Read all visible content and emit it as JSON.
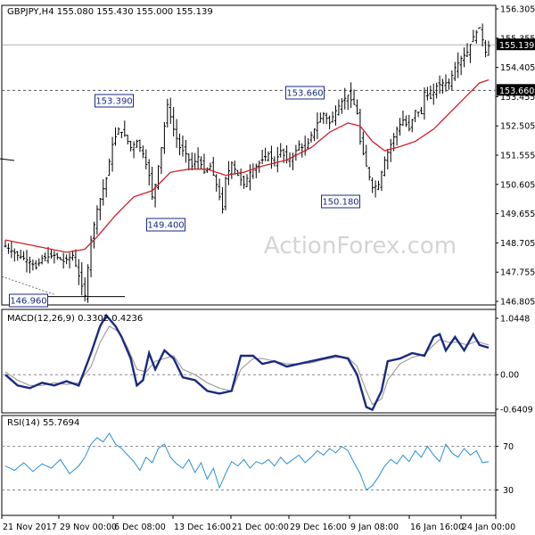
{
  "header": {
    "main": "GBPJPY,H4  155.080 155.430 155.000 155.139",
    "macd": "MACD(12,26,9) 0.3302 0.4236",
    "rsi": "RSI(14) 55.7694"
  },
  "watermark": "ActionForex.com",
  "colors": {
    "bars": "#000000",
    "ma": "#d0202a",
    "macd_line": "#1a2a80",
    "macd_signal": "#a0a0a0",
    "rsi_line": "#2b8fd6",
    "grid": "#c8c8c8",
    "label_box": "#1a2a80"
  },
  "chart_data": [
    {
      "panel": "price",
      "type": "ohlc",
      "symbol": "GBPJPY",
      "timeframe": "H4",
      "last_ohlc": {
        "open": 155.08,
        "high": 155.43,
        "low": 155.0,
        "close": 155.139
      },
      "ylim": [
        146.805,
        156.305
      ],
      "yticks": [
        "156.305",
        "155.355",
        "154.405",
        "153.455",
        "152.505",
        "151.555",
        "150.605",
        "149.655",
        "148.705",
        "147.755",
        "146.805"
      ],
      "xticks": [
        "21 Nov 2017",
        "29 Nov 00:00",
        "6 Dec 08:00",
        "13 Dec 16:00",
        "21 Dec 00:00",
        "29 Dec 16:00",
        "9 Jan 08:00",
        "16 Jan 16:00",
        "24 Jan 00:00"
      ],
      "price_tag": "155.139",
      "level_tag": "153.660",
      "support_line": 146.96,
      "annotations": [
        {
          "text": "153.390",
          "value": 153.39
        },
        {
          "text": "149.400",
          "value": 149.4
        },
        {
          "text": "153.660",
          "value": 153.66
        },
        {
          "text": "150.180",
          "value": 150.18
        },
        {
          "text": "146.960",
          "value": 146.96
        }
      ],
      "close_path": [
        [
          0,
          148.6
        ],
        [
          4,
          148.3
        ],
        [
          8,
          148.1
        ],
        [
          10,
          147.9
        ],
        [
          12,
          148.2
        ],
        [
          16,
          148.3
        ],
        [
          19,
          148.1
        ],
        [
          22,
          148.3
        ],
        [
          25,
          147.3
        ],
        [
          26,
          147.0
        ],
        [
          28,
          148.8
        ],
        [
          30,
          149.8
        ],
        [
          33,
          150.8
        ],
        [
          35,
          151.9
        ],
        [
          37,
          152.4
        ],
        [
          39,
          152.2
        ],
        [
          41,
          151.8
        ],
        [
          43,
          152.0
        ],
        [
          45,
          151.6
        ],
        [
          47,
          150.9
        ],
        [
          48,
          150.2
        ],
        [
          49,
          150.6
        ],
        [
          51,
          151.8
        ],
        [
          52,
          152.5
        ],
        [
          53,
          153.2
        ],
        [
          55,
          152.4
        ],
        [
          57,
          151.8
        ],
        [
          59,
          151.6
        ],
        [
          61,
          151.2
        ],
        [
          63,
          151.5
        ],
        [
          65,
          151.0
        ],
        [
          67,
          151.2
        ],
        [
          69,
          150.6
        ],
        [
          71,
          149.8
        ],
        [
          72,
          150.8
        ],
        [
          74,
          151.3
        ],
        [
          76,
          150.9
        ],
        [
          78,
          150.6
        ],
        [
          80,
          151.0
        ],
        [
          82,
          151.2
        ],
        [
          84,
          151.4
        ],
        [
          86,
          151.6
        ],
        [
          88,
          151.3
        ],
        [
          90,
          151.7
        ],
        [
          92,
          151.4
        ],
        [
          94,
          151.5
        ],
        [
          96,
          151.9
        ],
        [
          98,
          151.7
        ],
        [
          100,
          152.2
        ],
        [
          102,
          152.6
        ],
        [
          104,
          152.9
        ],
        [
          106,
          152.6
        ],
        [
          108,
          153.0
        ],
        [
          110,
          153.3
        ],
        [
          112,
          153.5
        ],
        [
          114,
          153.2
        ],
        [
          115,
          152.9
        ],
        [
          116,
          152.0
        ],
        [
          118,
          151.2
        ],
        [
          120,
          150.5
        ],
        [
          122,
          150.6
        ],
        [
          124,
          151.4
        ],
        [
          126,
          151.9
        ],
        [
          128,
          152.4
        ],
        [
          130,
          152.7
        ],
        [
          132,
          152.4
        ],
        [
          134,
          153.0
        ],
        [
          136,
          152.9
        ],
        [
          137,
          153.6
        ],
        [
          139,
          153.4
        ],
        [
          141,
          153.8
        ],
        [
          143,
          153.9
        ],
        [
          145,
          153.9
        ],
        [
          147,
          154.4
        ],
        [
          149,
          154.7
        ],
        [
          151,
          154.9
        ],
        [
          153,
          155.4
        ],
        [
          155,
          155.7
        ],
        [
          157,
          154.9
        ],
        [
          158,
          155.1
        ]
      ],
      "ma_path": [
        [
          0,
          148.8
        ],
        [
          10,
          148.6
        ],
        [
          20,
          148.4
        ],
        [
          26,
          148.5
        ],
        [
          30,
          148.9
        ],
        [
          36,
          149.6
        ],
        [
          42,
          150.2
        ],
        [
          48,
          150.4
        ],
        [
          54,
          151.0
        ],
        [
          60,
          151.1
        ],
        [
          66,
          151.1
        ],
        [
          72,
          150.9
        ],
        [
          78,
          151.0
        ],
        [
          84,
          151.2
        ],
        [
          92,
          151.4
        ],
        [
          100,
          151.8
        ],
        [
          106,
          152.3
        ],
        [
          112,
          152.6
        ],
        [
          116,
          152.5
        ],
        [
          120,
          152.0
        ],
        [
          124,
          151.7
        ],
        [
          128,
          151.8
        ],
        [
          134,
          152.0
        ],
        [
          140,
          152.4
        ],
        [
          146,
          153.0
        ],
        [
          150,
          153.4
        ],
        [
          155,
          153.9
        ],
        [
          158,
          154.0
        ]
      ]
    },
    {
      "panel": "macd",
      "type": "line",
      "title": "MACD(12,26,9) 0.3302 0.4236",
      "ylim": [
        -0.6409,
        1.0448
      ],
      "yticks": [
        "1.0448",
        "0.00",
        "-0.6409"
      ],
      "series": [
        {
          "name": "MACD",
          "points": [
            [
              0,
              0.0
            ],
            [
              4,
              -0.2
            ],
            [
              8,
              -0.25
            ],
            [
              12,
              -0.15
            ],
            [
              16,
              -0.2
            ],
            [
              20,
              -0.12
            ],
            [
              24,
              -0.2
            ],
            [
              28,
              0.4
            ],
            [
              31,
              0.9
            ],
            [
              33,
              1.1
            ],
            [
              36,
              0.9
            ],
            [
              38,
              0.7
            ],
            [
              41,
              0.3
            ],
            [
              43,
              -0.2
            ],
            [
              45,
              -0.1
            ],
            [
              47,
              0.4
            ],
            [
              49,
              0.1
            ],
            [
              52,
              0.45
            ],
            [
              55,
              0.3
            ],
            [
              58,
              -0.05
            ],
            [
              62,
              -0.1
            ],
            [
              66,
              -0.3
            ],
            [
              70,
              -0.35
            ],
            [
              74,
              -0.3
            ],
            [
              77,
              0.35
            ],
            [
              81,
              0.35
            ],
            [
              84,
              0.2
            ],
            [
              88,
              0.25
            ],
            [
              92,
              0.15
            ],
            [
              96,
              0.2
            ],
            [
              100,
              0.25
            ],
            [
              104,
              0.3
            ],
            [
              108,
              0.35
            ],
            [
              112,
              0.3
            ],
            [
              115,
              0.0
            ],
            [
              118,
              -0.6
            ],
            [
              120,
              -0.65
            ],
            [
              123,
              -0.3
            ],
            [
              125,
              0.25
            ],
            [
              129,
              0.3
            ],
            [
              133,
              0.4
            ],
            [
              137,
              0.35
            ],
            [
              140,
              0.7
            ],
            [
              142,
              0.75
            ],
            [
              144,
              0.45
            ],
            [
              147,
              0.7
            ],
            [
              150,
              0.45
            ],
            [
              153,
              0.75
            ],
            [
              155,
              0.55
            ],
            [
              158,
              0.5
            ]
          ]
        },
        {
          "name": "Signal",
          "points": [
            [
              0,
              0.05
            ],
            [
              4,
              -0.1
            ],
            [
              8,
              -0.2
            ],
            [
              12,
              -0.2
            ],
            [
              16,
              -0.15
            ],
            [
              20,
              -0.18
            ],
            [
              24,
              -0.15
            ],
            [
              28,
              0.15
            ],
            [
              31,
              0.6
            ],
            [
              34,
              0.9
            ],
            [
              37,
              0.8
            ],
            [
              40,
              0.5
            ],
            [
              43,
              0.1
            ],
            [
              46,
              0.05
            ],
            [
              49,
              0.25
            ],
            [
              52,
              0.3
            ],
            [
              55,
              0.35
            ],
            [
              58,
              0.1
            ],
            [
              62,
              0.0
            ],
            [
              66,
              -0.15
            ],
            [
              70,
              -0.25
            ],
            [
              74,
              -0.3
            ],
            [
              77,
              0.1
            ],
            [
              81,
              0.3
            ],
            [
              84,
              0.3
            ],
            [
              88,
              0.25
            ],
            [
              92,
              0.2
            ],
            [
              96,
              0.2
            ],
            [
              100,
              0.22
            ],
            [
              104,
              0.28
            ],
            [
              108,
              0.32
            ],
            [
              112,
              0.32
            ],
            [
              115,
              0.15
            ],
            [
              118,
              -0.3
            ],
            [
              120,
              -0.55
            ],
            [
              123,
              -0.45
            ],
            [
              125,
              -0.1
            ],
            [
              129,
              0.2
            ],
            [
              133,
              0.32
            ],
            [
              137,
              0.38
            ],
            [
              140,
              0.55
            ],
            [
              142,
              0.65
            ],
            [
              145,
              0.6
            ],
            [
              148,
              0.6
            ],
            [
              151,
              0.55
            ],
            [
              154,
              0.62
            ],
            [
              158,
              0.55
            ]
          ]
        }
      ]
    },
    {
      "panel": "rsi",
      "type": "line",
      "title": "RSI(14) 55.7694",
      "ylim": [
        0,
        100
      ],
      "yticks": [
        "70",
        "30"
      ],
      "reference_lines": [
        70,
        30
      ],
      "series": [
        {
          "name": "RSI",
          "points": [
            [
              0,
              52
            ],
            [
              3,
              48
            ],
            [
              6,
              55
            ],
            [
              9,
              47
            ],
            [
              12,
              54
            ],
            [
              15,
              50
            ],
            [
              18,
              58
            ],
            [
              21,
              45
            ],
            [
              24,
              52
            ],
            [
              26,
              60
            ],
            [
              28,
              72
            ],
            [
              30,
              78
            ],
            [
              32,
              74
            ],
            [
              34,
              82
            ],
            [
              36,
              72
            ],
            [
              38,
              68
            ],
            [
              40,
              62
            ],
            [
              42,
              56
            ],
            [
              44,
              48
            ],
            [
              46,
              60
            ],
            [
              48,
              55
            ],
            [
              50,
              68
            ],
            [
              52,
              72
            ],
            [
              54,
              60
            ],
            [
              56,
              54
            ],
            [
              58,
              50
            ],
            [
              60,
              58
            ],
            [
              62,
              46
            ],
            [
              64,
              55
            ],
            [
              66,
              40
            ],
            [
              68,
              50
            ],
            [
              70,
              32
            ],
            [
              72,
              45
            ],
            [
              74,
              56
            ],
            [
              76,
              52
            ],
            [
              78,
              58
            ],
            [
              80,
              50
            ],
            [
              82,
              56
            ],
            [
              84,
              54
            ],
            [
              86,
              58
            ],
            [
              88,
              52
            ],
            [
              90,
              60
            ],
            [
              92,
              54
            ],
            [
              94,
              58
            ],
            [
              96,
              62
            ],
            [
              98,
              55
            ],
            [
              100,
              60
            ],
            [
              102,
              66
            ],
            [
              104,
              62
            ],
            [
              106,
              68
            ],
            [
              108,
              64
            ],
            [
              110,
              70
            ],
            [
              112,
              66
            ],
            [
              114,
              55
            ],
            [
              116,
              45
            ],
            [
              118,
              30
            ],
            [
              120,
              34
            ],
            [
              122,
              42
            ],
            [
              124,
              52
            ],
            [
              126,
              58
            ],
            [
              128,
              54
            ],
            [
              130,
              62
            ],
            [
              132,
              56
            ],
            [
              134,
              66
            ],
            [
              136,
              60
            ],
            [
              138,
              70
            ],
            [
              140,
              62
            ],
            [
              142,
              56
            ],
            [
              144,
              72
            ],
            [
              146,
              64
            ],
            [
              148,
              60
            ],
            [
              150,
              68
            ],
            [
              152,
              62
            ],
            [
              154,
              66
            ],
            [
              156,
              55
            ],
            [
              158,
              56
            ]
          ]
        }
      ]
    }
  ]
}
